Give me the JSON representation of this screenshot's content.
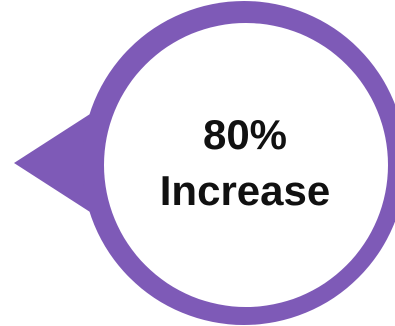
{
  "badge": {
    "value": "80%",
    "caption": "Increase",
    "ring_color": "#7E5AB7",
    "fill_color": "#FFFFFF",
    "text_color": "#111111"
  }
}
